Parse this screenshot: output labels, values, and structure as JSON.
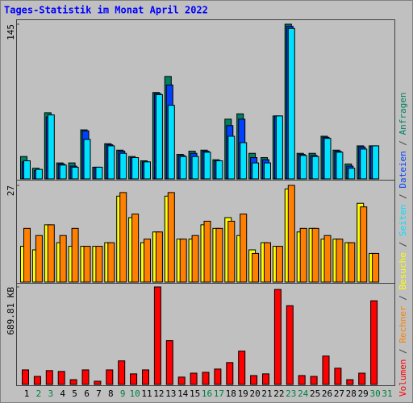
{
  "chart_data": {
    "type": "bar",
    "title": "Tages-Statistik im Monat April 2022",
    "categories": [
      "1",
      "2",
      "3",
      "4",
      "5",
      "6",
      "7",
      "8",
      "9",
      "10",
      "11",
      "12",
      "13",
      "14",
      "15",
      "16",
      "17",
      "18",
      "19",
      "20",
      "21",
      "22",
      "23",
      "24",
      "25",
      "26",
      "27",
      "28",
      "29",
      "30",
      "31"
    ],
    "category_color": "#000000",
    "highlight_categories": [
      1,
      2,
      8,
      9,
      15,
      16,
      22,
      23,
      29,
      30
    ],
    "highlight_color": "#008040",
    "legend_separator": " / ",
    "panels": [
      {
        "ylim": [
          0,
          145
        ],
        "yticks": [
          145
        ],
        "series": [
          {
            "name": "Anfragen",
            "color": "#008060",
            "values": [
              21,
              10,
              62,
              15,
              15,
              46,
              11,
              33,
              27,
              21,
              17,
              81,
              96,
              23,
              26,
              27,
              18,
              56,
              61,
              24,
              20,
              59,
              145,
              24,
              24,
              40,
              27,
              14,
              31,
              31,
              null
            ]
          },
          {
            "name": "Dateien",
            "color": "#0040ff",
            "values": [
              16,
              8,
              58,
              14,
              12,
              45,
              11,
              32,
              26,
              20,
              16,
              80,
              88,
              22,
              24,
              26,
              17,
              50,
              56,
              20,
              18,
              59,
              143,
              23,
              22,
              39,
              26,
              12,
              30,
              31,
              null
            ]
          },
          {
            "name": "Seiten",
            "color": "#00e0ff",
            "values": [
              17,
              9,
              60,
              13,
              11,
              37,
              11,
              31,
              24,
              20,
              16,
              79,
              69,
              21,
              21,
              25,
              17,
              40,
              34,
              15,
              15,
              59,
              141,
              22,
              21,
              38,
              25,
              10,
              28,
              31,
              null
            ]
          }
        ]
      },
      {
        "ylim": [
          0,
          27
        ],
        "yticks": [
          27
        ],
        "series": [
          {
            "name": "Besuche",
            "color": "#ffff00",
            "values": [
              10,
              9,
              16,
              11,
              10,
              10,
              10,
              11,
              24,
              18,
              11,
              14,
              24,
              12,
              12,
              16,
              15,
              18,
              13,
              9,
              11,
              10,
              26,
              14,
              15,
              12,
              12,
              11,
              22,
              8,
              null
            ]
          },
          {
            "name": "Rechner",
            "color": "#ff8000",
            "values": [
              15,
              13,
              16,
              13,
              15,
              10,
              10,
              11,
              25,
              19,
              12,
              14,
              25,
              12,
              13,
              17,
              15,
              17,
              19,
              8,
              11,
              10,
              27,
              15,
              15,
              13,
              12,
              11,
              21,
              8,
              null
            ]
          }
        ]
      },
      {
        "ylim": [
          0,
          689.81
        ],
        "yticks": [
          {
            "value": 689.81,
            "label": "689.81 KB"
          }
        ],
        "series": [
          {
            "name": "Volumen",
            "color": "#ff0000",
            "values": [
              103,
              57,
              98,
              92,
              34,
              103,
              23,
              103,
              167,
              75,
              103,
              689.81,
              310,
              52,
              80,
              86,
              109,
              155,
              236,
              63,
              75,
              672,
              557,
              63,
              57,
              201,
              115,
              34,
              80,
              592,
              null
            ]
          }
        ]
      }
    ]
  }
}
